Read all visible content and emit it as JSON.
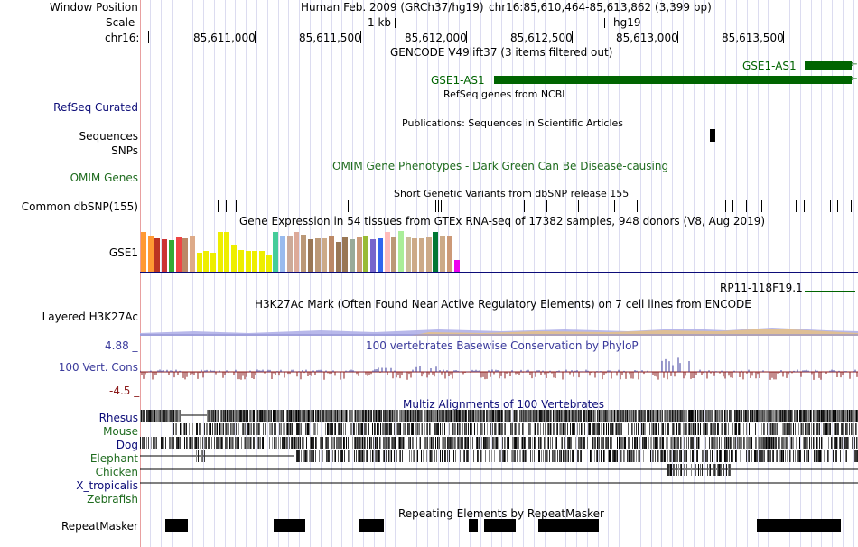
{
  "header": {
    "window_position_label": "Window Position",
    "assembly": "Human Feb. 2009 (GRCh37/hg19)",
    "position": "chr16:85,610,464-85,613,862 (3,399 bp)",
    "scale_label": "Scale",
    "scale_value": "1 kb",
    "scale_assembly": "hg19",
    "chrom_label": "chr16:",
    "ruler_ticks": [
      "85,611,000",
      "85,611,500",
      "85,612,000",
      "85,612,500",
      "85,613,000",
      "85,613,500"
    ]
  },
  "tracks": {
    "gencode": {
      "title": "GENCODE V49lift37 (3 items filtered out)",
      "genes": [
        "GSE1-AS1",
        "GSE1-AS1"
      ]
    },
    "refseq": {
      "label": "RefSeq Curated",
      "title": "RefSeq genes from NCBI"
    },
    "publications": {
      "label": "Sequences",
      "title": "Publications: Sequences in Scientific Articles"
    },
    "snps": {
      "label": "SNPs"
    },
    "omim": {
      "label": "OMIM Genes",
      "title": "OMIM Gene Phenotypes - Dark Green Can Be Disease-causing"
    },
    "dbsnp": {
      "label": "Common dbSNP(155)",
      "title": "Short Genetic Variants from dbSNP release 155"
    },
    "gtex": {
      "label": "GSE1",
      "title": "Gene Expression in 54 tissues from GTEx RNA-seq of 17382 samples, 948 donors (V8, Aug 2019)",
      "gene2": "RP11-118F19.1"
    },
    "h3k27ac": {
      "label": "Layered H3K27Ac",
      "title": "H3K27Ac Mark (Often Found Near Active Regulatory Elements) on 7 cell lines from ENCODE"
    },
    "phylop": {
      "label": "100 Vert. Cons",
      "title": "100 vertebrates Basewise Conservation by PhyloP",
      "max": "4.88 _",
      "min": "-4.5 _"
    },
    "multiz": {
      "title": "Multiz Alignments of 100 Vertebrates",
      "species": [
        "Rhesus",
        "Mouse",
        "Dog",
        "Elephant",
        "Chicken",
        "X_tropicalis",
        "Zebrafish"
      ]
    },
    "repeatmasker": {
      "label": "RepeatMasker",
      "title": "Repeating Elements by RepeatMasker"
    }
  },
  "colors": {
    "gene_green": "#006400",
    "refseq_blue": "#0c0c78",
    "omim_green": "#1e6b1e",
    "cons_blue": "#3b3b9c",
    "cons_red": "#8b1a1a",
    "guide": "#d6d6f0",
    "left_rule": "#e8a0a0"
  },
  "gtex_bars": [
    {
      "color": "#ff9933",
      "level": 0.95
    },
    {
      "color": "#ff9933",
      "level": 0.88
    },
    {
      "color": "#bb3322",
      "level": 0.8
    },
    {
      "color": "#cc3333",
      "level": 0.78
    },
    {
      "color": "#33aa33",
      "level": 0.75
    },
    {
      "color": "#ee4444",
      "level": 0.82
    },
    {
      "color": "#bb8866",
      "level": 0.8
    },
    {
      "color": "#ddaa88",
      "level": 0.88
    },
    {
      "color": "#eeee00",
      "level": 0.45
    },
    {
      "color": "#eeee00",
      "level": 0.5
    },
    {
      "color": "#eeee00",
      "level": 0.45
    },
    {
      "color": "#eeee00",
      "level": 0.95
    },
    {
      "color": "#eeee00",
      "level": 0.95
    },
    {
      "color": "#eeee00",
      "level": 0.65
    },
    {
      "color": "#eeee00",
      "level": 0.52
    },
    {
      "color": "#eeee00",
      "level": 0.5
    },
    {
      "color": "#eeee00",
      "level": 0.5
    },
    {
      "color": "#eeee00",
      "level": 0.5
    },
    {
      "color": "#eeee00",
      "level": 0.4
    },
    {
      "color": "#44cc99",
      "level": 0.95
    },
    {
      "color": "#99bbee",
      "level": 0.85
    },
    {
      "color": "#ccaa99",
      "level": 0.88
    },
    {
      "color": "#ddaa99",
      "level": 0.95
    },
    {
      "color": "#bb9977",
      "level": 0.9
    },
    {
      "color": "#997755",
      "level": 0.78
    },
    {
      "color": "#bb9977",
      "level": 0.8
    },
    {
      "color": "#ccaa88",
      "level": 0.8
    },
    {
      "color": "#bb8866",
      "level": 0.88
    },
    {
      "color": "#997755",
      "level": 0.72
    },
    {
      "color": "#997755",
      "level": 0.82
    },
    {
      "color": "#99aa99",
      "level": 0.78
    },
    {
      "color": "#cc9977",
      "level": 0.82
    },
    {
      "color": "#99bb33",
      "level": 0.88
    },
    {
      "color": "#7766cc",
      "level": 0.78
    },
    {
      "color": "#3366ee",
      "level": 0.8
    },
    {
      "color": "#ffbbbb",
      "level": 0.95
    },
    {
      "color": "#bb9977",
      "level": 0.82
    },
    {
      "color": "#aaee99",
      "level": 0.98
    },
    {
      "color": "#ccbb99",
      "level": 0.82
    },
    {
      "color": "#ccaa88",
      "level": 0.8
    },
    {
      "color": "#ccaa88",
      "level": 0.8
    },
    {
      "color": "#ccaa88",
      "level": 0.82
    },
    {
      "color": "#007733",
      "level": 0.95
    },
    {
      "color": "#ccaa88",
      "level": 0.85
    },
    {
      "color": "#cc9977",
      "level": 0.85
    },
    {
      "color": "#ee00ee",
      "level": 0.28
    }
  ]
}
